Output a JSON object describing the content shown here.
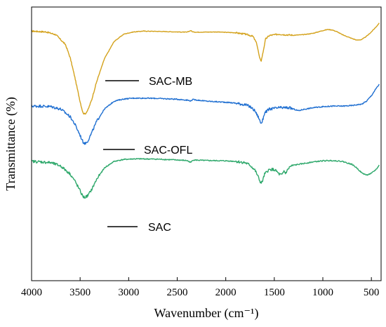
{
  "chart_data": {
    "type": "line",
    "xlabel": "Wavenumber (cm⁻¹)",
    "ylabel": "Transmittance (%)",
    "xlim": [
      4000,
      400
    ],
    "x_ticks": [
      4000,
      3500,
      3000,
      2500,
      2000,
      1500,
      1000,
      500
    ],
    "y_ticks": "none",
    "grid": false,
    "legend": "none",
    "series": [
      {
        "name": "SAC-MB",
        "color": "#D4A21C",
        "x": [
          4000,
          3850,
          3750,
          3650,
          3600,
          3550,
          3500,
          3470,
          3450,
          3420,
          3380,
          3330,
          3250,
          3150,
          3050,
          2950,
          2850,
          2700,
          2500,
          2400,
          2360,
          2340,
          2300,
          2100,
          1900,
          1800,
          1720,
          1680,
          1650,
          1635,
          1620,
          1590,
          1550,
          1450,
          1400,
          1300,
          1200,
          1100,
          1000,
          950,
          900,
          850,
          800,
          700,
          650,
          600,
          550,
          500,
          450,
          420
        ],
        "y": [
          91.2,
          90.9,
          89.9,
          86.2,
          81.2,
          73.6,
          65.4,
          61.3,
          60.9,
          62.3,
          66.2,
          72.7,
          81.1,
          87.4,
          90.1,
          90.9,
          91.2,
          91.1,
          90.9,
          90.8,
          91.4,
          90.9,
          90.8,
          90.9,
          90.6,
          90.1,
          89.3,
          86.6,
          81.1,
          80.4,
          82.7,
          88.3,
          89.6,
          90.1,
          89.9,
          89.7,
          89.9,
          90.4,
          91.4,
          91.8,
          91.6,
          90.9,
          89.9,
          88.5,
          87.9,
          88.1,
          89.3,
          90.9,
          92.8,
          94.1
        ]
      },
      {
        "name": "SAC-OFL",
        "color": "#1F6FD1",
        "x": [
          4000,
          3900,
          3800,
          3700,
          3650,
          3600,
          3550,
          3500,
          3470,
          3450,
          3420,
          3380,
          3330,
          3250,
          3150,
          3050,
          2950,
          2850,
          2700,
          2500,
          2400,
          2360,
          2340,
          2200,
          2000,
          1900,
          1800,
          1750,
          1700,
          1660,
          1640,
          1625,
          1600,
          1550,
          1450,
          1350,
          1300,
          1250,
          1200,
          1100,
          1000,
          900,
          800,
          700,
          650,
          600,
          550,
          500,
          450,
          420
        ],
        "y": [
          63.8,
          63.8,
          63.6,
          62.7,
          61.3,
          59.8,
          56.9,
          53.1,
          50.7,
          50.1,
          51.1,
          54.1,
          58.2,
          62.7,
          65.6,
          66.4,
          66.7,
          66.7,
          66.6,
          66.3,
          66.0,
          65.7,
          66.2,
          65.6,
          65.2,
          64.9,
          64.3,
          63.6,
          62.1,
          59.5,
          57.6,
          58.0,
          61.3,
          62.7,
          63.2,
          63.2,
          62.7,
          62.1,
          62.6,
          63.2,
          63.6,
          63.8,
          63.8,
          64.0,
          64.3,
          64.5,
          65.6,
          67.6,
          70.3,
          71.7
        ]
      },
      {
        "name": "SAC",
        "color": "#2EA86B",
        "x": [
          4000,
          3900,
          3800,
          3700,
          3650,
          3600,
          3550,
          3500,
          3470,
          3450,
          3420,
          3380,
          3330,
          3250,
          3150,
          3050,
          2950,
          2850,
          2700,
          2500,
          2400,
          2360,
          2340,
          2200,
          2000,
          1900,
          1800,
          1750,
          1700,
          1670,
          1650,
          1635,
          1620,
          1600,
          1560,
          1520,
          1480,
          1450,
          1420,
          1400,
          1385,
          1370,
          1340,
          1300,
          1200,
          1100,
          1000,
          900,
          800,
          700,
          650,
          600,
          550,
          500,
          450,
          420
        ],
        "y": [
          43.6,
          43.4,
          43.1,
          41.9,
          40.4,
          38.9,
          36.2,
          32.8,
          30.7,
          30.4,
          31.1,
          33.4,
          37.0,
          41.2,
          43.6,
          44.3,
          44.5,
          44.5,
          44.4,
          44.1,
          43.9,
          43.2,
          44.1,
          43.9,
          43.8,
          43.6,
          43.1,
          42.2,
          40.4,
          38.3,
          36.5,
          35.6,
          36.5,
          38.9,
          40.4,
          40.7,
          40.1,
          38.9,
          38.6,
          40.1,
          39.2,
          40.1,
          41.6,
          42.2,
          42.8,
          43.4,
          43.8,
          43.9,
          43.6,
          42.5,
          41.2,
          39.4,
          38.6,
          39.2,
          40.7,
          42.2
        ]
      }
    ]
  }
}
